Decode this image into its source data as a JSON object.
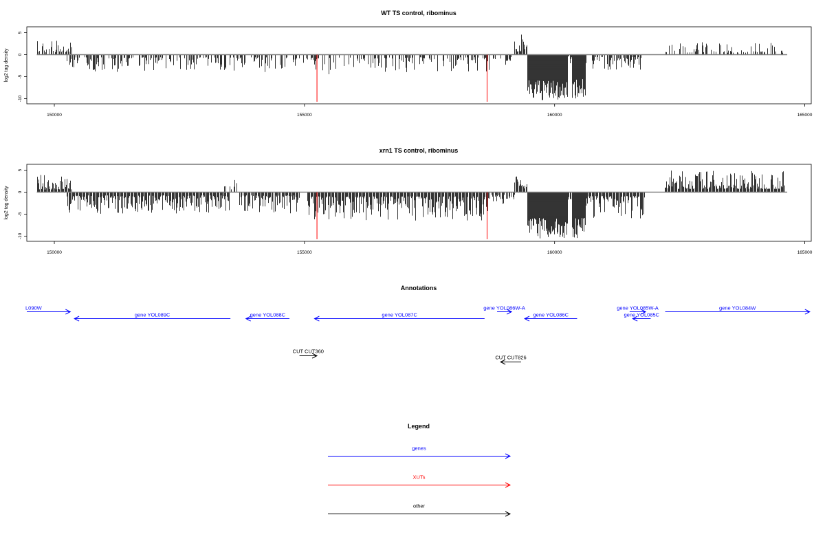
{
  "chart_data": [
    {
      "type": "bar",
      "title": "WT TS control, ribominus",
      "ylabel": "log2 tag density",
      "xlabel": "",
      "xlim": [
        149450,
        165130
      ],
      "ylim": [
        -11,
        6.5
      ],
      "yticks": [
        5,
        0,
        -5,
        -10
      ],
      "ytick_labels": [
        "5",
        "0",
        "-5",
        "-10"
      ],
      "xticks": [
        150000,
        155000,
        160000,
        165000
      ],
      "xtick_labels": [
        "150000",
        "155000",
        "160000",
        "165000"
      ],
      "baseline_x": [
        149650,
        164650
      ],
      "red_markers": [
        {
          "x": 155250,
          "y": -10.7
        },
        {
          "x": 158650,
          "y": -10.7
        }
      ],
      "segments": [
        {
          "start": 149650,
          "end": 150350,
          "kind": "pos",
          "amp": 3.5,
          "density": 0.7
        },
        {
          "start": 150250,
          "end": 153500,
          "kind": "neg",
          "amp": 4,
          "density": 0.65
        },
        {
          "start": 153500,
          "end": 155000,
          "kind": "neg",
          "amp": 4,
          "density": 0.55
        },
        {
          "start": 155000,
          "end": 156300,
          "kind": "neg",
          "amp": 4.5,
          "density": 0.5
        },
        {
          "start": 156300,
          "end": 158700,
          "kind": "neg",
          "amp": 4,
          "density": 0.55
        },
        {
          "start": 158700,
          "end": 159200,
          "kind": "neg",
          "amp": 3.5,
          "density": 0.5
        },
        {
          "start": 159200,
          "end": 159450,
          "kind": "pos",
          "amp": 4.8,
          "density": 1.0
        },
        {
          "start": 159450,
          "end": 160250,
          "kind": "deep",
          "amp": 10.5,
          "density": 1.0
        },
        {
          "start": 160250,
          "end": 160350,
          "kind": "neg",
          "amp": 2,
          "density": 0.6
        },
        {
          "start": 160350,
          "end": 160620,
          "kind": "deep",
          "amp": 10,
          "density": 1.0
        },
        {
          "start": 160620,
          "end": 161800,
          "kind": "neg",
          "amp": 3.5,
          "density": 0.6
        },
        {
          "start": 162200,
          "end": 164600,
          "kind": "pos",
          "amp": 3,
          "density": 0.55
        }
      ]
    },
    {
      "type": "bar",
      "title": "xrn1 TS control, ribominus",
      "ylabel": "log2 tag density",
      "xlabel": "",
      "xlim": [
        149450,
        165130
      ],
      "ylim": [
        -11,
        6.5
      ],
      "yticks": [
        5,
        0,
        -5,
        -10
      ],
      "ytick_labels": [
        "5",
        "0",
        "-5",
        "-10"
      ],
      "xticks": [
        150000,
        155000,
        160000,
        165000
      ],
      "xtick_labels": [
        "150000",
        "155000",
        "160000",
        "165000"
      ],
      "baseline_x": [
        149650,
        164650
      ],
      "red_markers": [
        {
          "x": 155250,
          "y": -10.7
        },
        {
          "x": 158650,
          "y": -10.7
        }
      ],
      "segments": [
        {
          "start": 149650,
          "end": 150350,
          "kind": "pos",
          "amp": 4,
          "density": 1.0
        },
        {
          "start": 150250,
          "end": 153500,
          "kind": "neg",
          "amp": 5,
          "density": 1.0
        },
        {
          "start": 153400,
          "end": 153700,
          "kind": "pos",
          "amp": 2.8,
          "density": 0.5
        },
        {
          "start": 153700,
          "end": 154900,
          "kind": "neg",
          "amp": 5,
          "density": 0.9
        },
        {
          "start": 155050,
          "end": 158700,
          "kind": "neg",
          "amp": 6.5,
          "density": 1.0
        },
        {
          "start": 158700,
          "end": 159200,
          "kind": "neg",
          "amp": 4,
          "density": 0.6
        },
        {
          "start": 159200,
          "end": 159450,
          "kind": "pos",
          "amp": 5.5,
          "density": 1.0
        },
        {
          "start": 159450,
          "end": 160250,
          "kind": "deep",
          "amp": 10.5,
          "density": 1.0
        },
        {
          "start": 160250,
          "end": 160350,
          "kind": "neg",
          "amp": 2,
          "density": 0.6
        },
        {
          "start": 160350,
          "end": 160620,
          "kind": "deep",
          "amp": 10.5,
          "density": 1.0
        },
        {
          "start": 160620,
          "end": 161800,
          "kind": "neg",
          "amp": 6,
          "density": 1.0
        },
        {
          "start": 162200,
          "end": 164600,
          "kind": "pos",
          "amp": 5,
          "density": 1.0
        }
      ]
    }
  ],
  "annotations": {
    "title": "Annotations",
    "genes": [
      {
        "label": "L090W",
        "x1": 149450,
        "x2": 150320,
        "row": 0,
        "dir": "right"
      },
      {
        "label": "gene YOL089C",
        "x1": 150400,
        "x2": 153520,
        "row": 1,
        "dir": "left"
      },
      {
        "label": "gene YOL088C",
        "x1": 153830,
        "x2": 154700,
        "row": 1,
        "dir": "left"
      },
      {
        "label": "gene YOL087C",
        "x1": 155200,
        "x2": 158600,
        "row": 1,
        "dir": "left"
      },
      {
        "label": "gene YOL086W-A",
        "x1": 158850,
        "x2": 159140,
        "row": 0,
        "dir": "right"
      },
      {
        "label": "gene YOL086C",
        "x1": 159400,
        "x2": 160450,
        "row": 1,
        "dir": "left"
      },
      {
        "label": "gene YOL085W-A",
        "x1": 161500,
        "x2": 161820,
        "row": 0,
        "dir": "right"
      },
      {
        "label": "gene YOL085C",
        "x1": 161560,
        "x2": 161920,
        "row": 1,
        "dir": "left"
      },
      {
        "label": "gene YOL084W",
        "x1": 162210,
        "x2": 165100,
        "row": 0,
        "dir": "right"
      }
    ],
    "other": [
      {
        "label": "CUT CUT360",
        "x1": 154900,
        "x2": 155250,
        "row": 0,
        "dir": "right"
      },
      {
        "label": "CUT CUT826",
        "x1": 158920,
        "x2": 159330,
        "row": 1,
        "dir": "left"
      }
    ]
  },
  "legend": {
    "title": "Legend",
    "items": [
      {
        "label": "genes",
        "color": "#0000ff"
      },
      {
        "label": "XUTs",
        "color": "#ff0000"
      },
      {
        "label": "other",
        "color": "#000000"
      }
    ]
  },
  "colors": {
    "genes": "#0000ff",
    "xuts": "#ff0000",
    "other": "#000000",
    "baseline": "#808080",
    "bars": "#000000"
  }
}
